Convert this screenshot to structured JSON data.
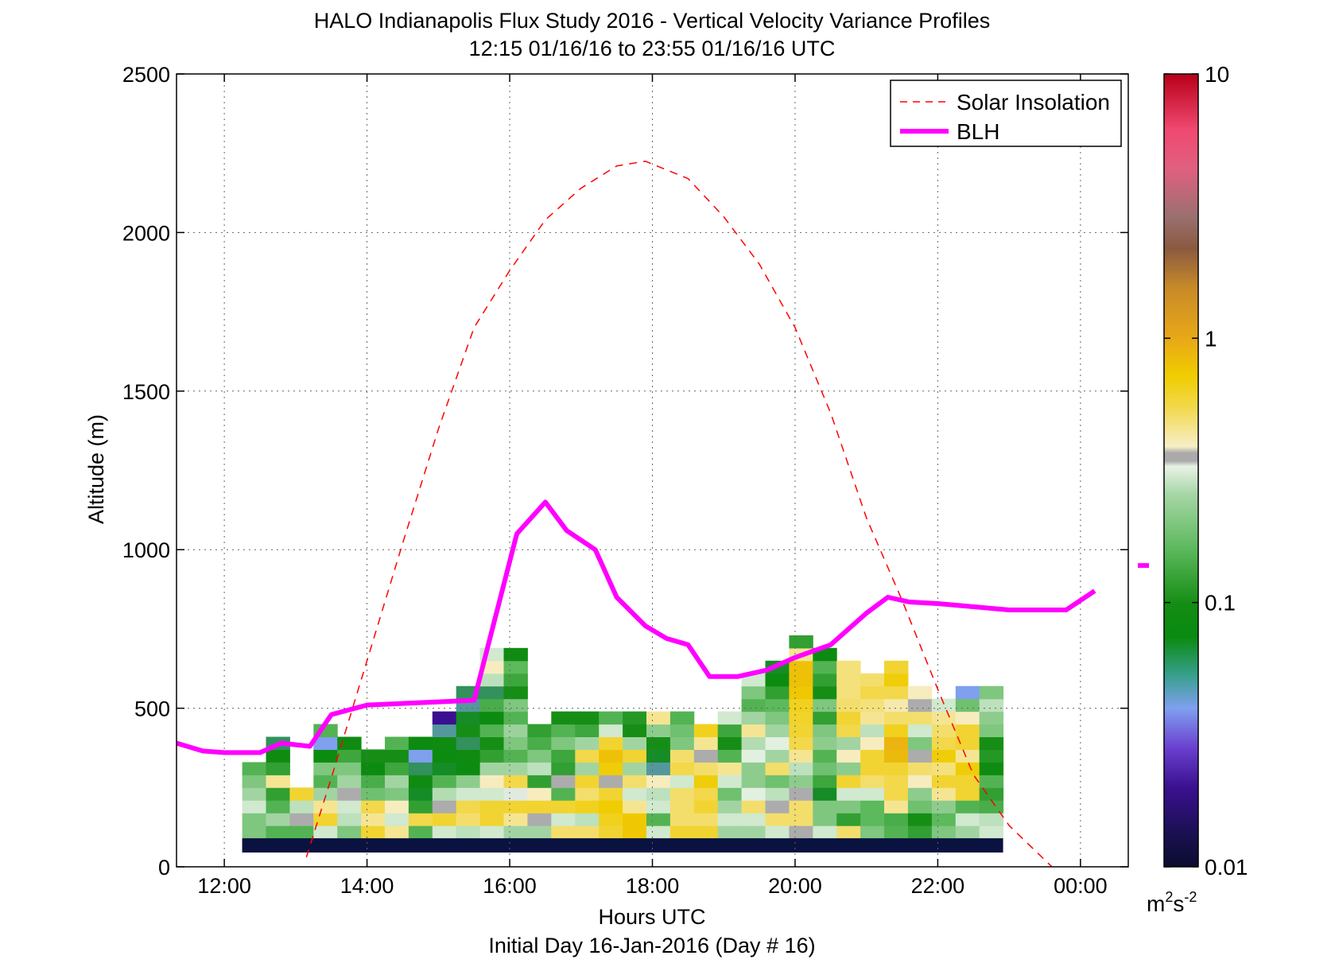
{
  "chart_data": {
    "type": "heatmap",
    "title": "HALO Indianapolis Flux Study 2016 - Vertical Velocity Variance Profiles",
    "subtitle": "12:15 01/16/16 to 23:55 01/16/16  UTC",
    "xlabel": "Hours UTC",
    "xlabel2": "Initial Day 16-Jan-2016 (Day # 16)",
    "ylabel": "Altitude (m)",
    "xlim": [
      11.33,
      24.67
    ],
    "ylim": [
      0,
      2500
    ],
    "x_ticks": [
      12,
      14,
      16,
      18,
      20,
      22,
      24
    ],
    "x_tick_labels": [
      "12:00",
      "14:00",
      "16:00",
      "18:00",
      "20:00",
      "22:00",
      "00:00"
    ],
    "y_ticks": [
      0,
      500,
      1000,
      1500,
      2000,
      2500
    ],
    "y_tick_labels": [
      "0",
      "500",
      "1000",
      "1500",
      "2000",
      "2500"
    ],
    "grid": true,
    "legend_position": "top-right",
    "colorbar": {
      "scale": "log",
      "range": [
        0.01,
        10
      ],
      "tick_values": [
        0.01,
        0.1,
        1,
        10
      ],
      "tick_labels": [
        "0.01",
        "0.1",
        "1",
        "10"
      ],
      "unit": "m",
      "unit_exp1": "2",
      "unit_mid": "s",
      "unit_exp2": "-2"
    },
    "bins": {
      "x_start": 12.25,
      "x_step": 0.3333,
      "y_start": 40,
      "y_step": 90,
      "baseline_row_bottom": 45,
      "baseline_row_top": 90
    },
    "grid_values": [
      [
        0.02,
        0.2,
        0.2,
        0.3,
        0.25,
        0.2,
        0.15
      ],
      [
        0.02,
        0.15,
        0.25,
        0.15,
        0.12,
        0.45,
        0.12,
        0.09,
        0.06
      ],
      [
        0.02,
        0.15,
        0.35,
        0.28,
        0.6
      ],
      [
        0.02,
        0.3,
        0.6,
        0.45,
        0.25,
        0.15,
        0.2,
        0.08,
        0.04,
        0.15
      ],
      [
        0.02,
        0.2,
        0.28,
        0.3,
        0.35,
        0.25,
        0.2,
        0.13,
        0.09
      ],
      [
        0.02,
        0.6,
        0.45,
        0.55,
        0.18,
        0.14,
        0.08,
        0.1
      ],
      [
        0.02,
        0.45,
        0.3,
        0.4,
        0.2,
        0.25,
        0.13,
        0.1,
        0.15
      ],
      [
        0.02,
        0.15,
        0.55,
        0.12,
        0.07,
        0.09,
        0.06,
        0.04,
        0.08
      ],
      [
        0.02,
        0.3,
        0.6,
        0.35,
        0.27,
        0.15,
        0.07,
        0.08,
        0.09,
        0.05,
        0.02
      ],
      [
        0.02,
        0.28,
        0.5,
        0.55,
        0.3,
        0.22,
        0.08,
        0.09,
        0.06,
        0.1,
        0.07,
        0.05,
        0.06
      ],
      [
        0.02,
        0.3,
        0.6,
        0.6,
        0.3,
        0.4,
        0.25,
        0.12,
        0.1,
        0.15,
        0.08,
        0.14,
        0.06,
        0.28,
        0.4,
        0.3
      ],
      [
        0.02,
        0.25,
        0.45,
        0.6,
        0.33,
        0.55,
        0.25,
        0.15,
        0.2,
        0.24,
        0.15,
        0.2,
        0.1,
        0.13,
        0.16,
        0.09
      ],
      [
        0.02,
        0.25,
        0.35,
        0.6,
        0.4,
        0.12,
        0.28,
        0.2,
        0.14,
        0.12
      ],
      [
        0.02,
        0.5,
        0.3,
        0.6,
        0.15,
        0.35,
        0.12,
        0.13,
        0.2,
        0.15,
        0.1
      ],
      [
        0.02,
        0.5,
        0.28,
        0.65,
        0.5,
        0.6,
        0.25,
        0.55,
        0.25,
        0.13,
        0.1
      ],
      [
        0.02,
        0.6,
        0.65,
        0.72,
        0.6,
        0.35,
        0.7,
        0.8,
        0.6,
        0.3,
        0.15
      ],
      [
        0.02,
        0.75,
        0.75,
        0.45,
        0.3,
        0.5,
        0.25,
        0.6,
        0.25,
        0.1,
        0.11
      ],
      [
        0.02,
        0.3,
        0.15,
        0.3,
        0.28,
        0.4,
        0.05,
        0.07,
        0.1,
        0.22,
        0.45
      ],
      [
        0.02,
        0.6,
        0.5,
        0.5,
        0.5,
        0.3,
        0.55,
        0.5,
        0.2,
        0.18,
        0.15
      ],
      [
        0.02,
        0.6,
        0.5,
        0.6,
        0.55,
        0.7,
        0.5,
        0.35,
        0.45,
        0.65
      ],
      [
        0.02,
        0.25,
        0.3,
        0.25,
        0.18,
        0.3,
        0.45,
        0.15,
        0.1,
        0.13,
        0.3
      ],
      [
        0.02,
        0.25,
        0.3,
        0.5,
        0.32,
        0.22,
        0.22,
        0.32,
        0.27,
        0.45,
        0.25,
        0.15,
        0.2,
        0.3
      ],
      [
        0.02,
        0.3,
        0.5,
        0.35,
        0.28,
        0.18,
        0.5,
        0.25,
        0.32,
        0.25,
        0.2,
        0.16,
        0.12,
        0.08,
        0.07
      ],
      [
        0.02,
        0.35,
        0.5,
        0.5,
        0.35,
        0.22,
        0.28,
        0.45,
        0.55,
        0.6,
        0.62,
        0.65,
        0.75,
        0.8,
        0.8,
        0.45,
        0.12
      ],
      [
        0.02,
        0.3,
        0.2,
        0.2,
        0.07,
        0.13,
        0.18,
        0.15,
        0.22,
        0.2,
        0.12,
        0.2,
        0.1,
        0.12,
        0.15,
        0.08
      ],
      [
        0.02,
        0.5,
        0.12,
        0.2,
        0.3,
        0.6,
        0.22,
        0.4,
        0.25,
        0.55,
        0.6,
        0.5,
        0.48,
        0.48,
        0.48
      ],
      [
        0.02,
        0.2,
        0.16,
        0.16,
        0.3,
        0.5,
        0.6,
        0.6,
        0.4,
        0.28,
        0.45,
        0.48,
        0.55,
        0.5
      ],
      [
        0.02,
        0.15,
        0.14,
        0.45,
        0.55,
        0.55,
        0.6,
        0.85,
        0.9,
        0.65,
        0.5,
        0.42,
        0.55,
        0.7,
        0.6
      ],
      [
        0.02,
        0.12,
        0.1,
        0.18,
        0.22,
        0.4,
        0.5,
        0.35,
        0.2,
        0.3,
        0.5,
        0.35,
        0.4
      ],
      [
        0.02,
        0.2,
        0.16,
        0.22,
        0.45,
        0.6,
        0.48,
        0.7,
        0.55,
        0.5,
        0.45,
        0.3
      ],
      [
        0.02,
        0.25,
        0.3,
        0.15,
        0.6,
        0.6,
        0.7,
        0.45,
        0.6,
        0.6,
        0.4,
        0.18,
        0.04
      ],
      [
        0.02,
        0.3,
        0.28,
        0.14,
        0.12,
        0.15,
        0.09,
        0.11,
        0.1,
        0.2,
        0.22,
        0.28,
        0.2
      ]
    ],
    "series": [
      {
        "name": "Solar Insolation",
        "color": "#ff0000",
        "dash": true,
        "x": [
          13.15,
          13.5,
          14.0,
          14.5,
          15.0,
          15.5,
          16.0,
          16.5,
          17.0,
          17.5,
          17.9,
          18.5,
          19.0,
          19.5,
          20.0,
          20.5,
          21.0,
          21.5,
          22.0,
          22.5,
          23.0,
          23.6
        ],
        "y": [
          30,
          280,
          650,
          1020,
          1380,
          1700,
          1880,
          2040,
          2140,
          2210,
          2225,
          2170,
          2050,
          1900,
          1700,
          1430,
          1100,
          840,
          560,
          290,
          130,
          0
        ]
      },
      {
        "name": "BLH",
        "color": "#ff00ff",
        "x": [
          11.33,
          11.7,
          12.0,
          12.5,
          12.8,
          13.0,
          13.2,
          13.5,
          14.0,
          14.5,
          15.0,
          15.5,
          15.7,
          16.1,
          16.5,
          16.8,
          17.2,
          17.5,
          17.9,
          18.2,
          18.5,
          18.8,
          19.2,
          19.6,
          20.0,
          20.5,
          21.0,
          21.3,
          21.6,
          22.0,
          22.5,
          23.0,
          23.5,
          23.8,
          24.2
        ],
        "y": [
          390,
          365,
          360,
          360,
          390,
          385,
          380,
          480,
          510,
          515,
          520,
          525,
          700,
          1050,
          1150,
          1060,
          1000,
          850,
          760,
          720,
          700,
          600,
          600,
          620,
          660,
          700,
          800,
          850,
          835,
          830,
          820,
          810,
          810,
          810,
          870
        ]
      }
    ],
    "outlier_marker": {
      "x": 24.67,
      "y": 950,
      "color": "#ff00ff"
    },
    "colors": {
      "baseline": "#0a1240",
      "axis": "#000000",
      "grid": "#666666"
    }
  }
}
